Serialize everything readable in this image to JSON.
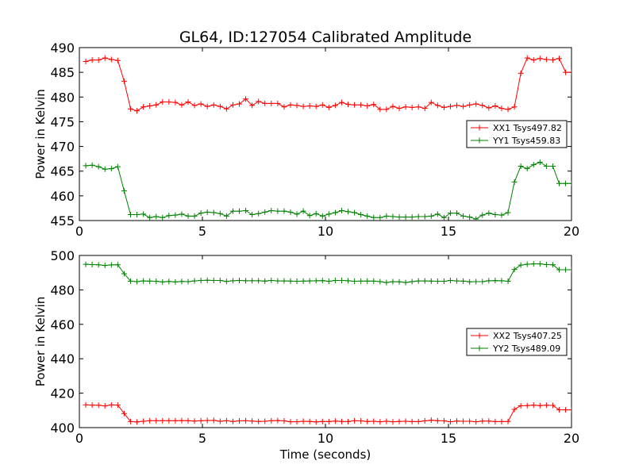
{
  "chart_data": [
    {
      "type": "line",
      "title": "GL64, ID:127054 Calibrated Amplitude",
      "xlabel": "",
      "ylabel": "Power in Kelvin",
      "xlim": [
        0,
        20
      ],
      "ylim": [
        455,
        490
      ],
      "xticks": [
        "0",
        "5",
        "10",
        "15",
        "20"
      ],
      "yticks": [
        "455",
        "460",
        "465",
        "470",
        "475",
        "480",
        "485",
        "490"
      ],
      "grid": false,
      "legend": "center-right",
      "series": [
        {
          "name": "XX1 Tsys497.82",
          "color": "#ff0000",
          "x": [
            0.26,
            0.52,
            0.78,
            1.04,
            1.3,
            1.56,
            1.82,
            2.08,
            2.34,
            2.6,
            2.86,
            3.12,
            3.38,
            3.64,
            3.9,
            4.16,
            4.42,
            4.68,
            4.94,
            5.2,
            5.46,
            5.72,
            5.98,
            6.24,
            6.5,
            6.76,
            7.02,
            7.28,
            7.54,
            7.8,
            8.06,
            8.32,
            8.58,
            8.84,
            9.1,
            9.36,
            9.62,
            9.88,
            10.14,
            10.4,
            10.66,
            10.92,
            11.18,
            11.44,
            11.7,
            11.96,
            12.22,
            12.48,
            12.74,
            13.0,
            13.26,
            13.52,
            13.78,
            14.04,
            14.3,
            14.56,
            14.82,
            15.08,
            15.34,
            15.6,
            15.86,
            16.12,
            16.38,
            16.64,
            16.9,
            17.16,
            17.42,
            17.68,
            17.94,
            18.2,
            18.46,
            18.72,
            18.98,
            19.24,
            19.5,
            19.76,
            20.0
          ],
          "y": [
            487.2,
            487.5,
            487.5,
            487.9,
            487.6,
            487.4,
            483.2,
            477.6,
            477.2,
            478.0,
            478.2,
            478.4,
            479.0,
            479.0,
            478.9,
            478.4,
            479.0,
            478.3,
            478.6,
            478.1,
            478.4,
            478.1,
            477.6,
            478.4,
            478.6,
            479.6,
            478.3,
            479.1,
            478.7,
            478.7,
            478.7,
            478.0,
            478.4,
            478.3,
            478.1,
            478.2,
            478.1,
            478.4,
            477.9,
            478.3,
            478.9,
            478.5,
            478.4,
            478.4,
            478.2,
            478.5,
            477.5,
            477.5,
            478.1,
            477.7,
            478.0,
            477.9,
            478.0,
            477.7,
            478.9,
            478.3,
            477.9,
            478.1,
            478.3,
            478.1,
            478.4,
            478.6,
            478.3,
            477.8,
            478.2,
            477.7,
            477.5,
            478.0,
            484.8,
            487.9,
            487.5,
            487.8,
            487.6,
            487.5,
            487.8,
            485.0,
            485.0
          ]
        },
        {
          "name": "YY1 Tsys459.83",
          "color": "#008000",
          "x": [
            0.26,
            0.52,
            0.78,
            1.04,
            1.3,
            1.56,
            1.82,
            2.08,
            2.34,
            2.6,
            2.86,
            3.12,
            3.38,
            3.64,
            3.9,
            4.16,
            4.42,
            4.68,
            4.94,
            5.2,
            5.46,
            5.72,
            5.98,
            6.24,
            6.5,
            6.76,
            7.02,
            7.28,
            7.54,
            7.8,
            8.06,
            8.32,
            8.58,
            8.84,
            9.1,
            9.36,
            9.62,
            9.88,
            10.14,
            10.4,
            10.66,
            10.92,
            11.18,
            11.44,
            11.7,
            11.96,
            12.22,
            12.48,
            12.74,
            13.0,
            13.26,
            13.52,
            13.78,
            14.04,
            14.3,
            14.56,
            14.82,
            15.08,
            15.34,
            15.6,
            15.86,
            16.12,
            16.38,
            16.64,
            16.9,
            17.16,
            17.42,
            17.68,
            17.94,
            18.2,
            18.46,
            18.72,
            18.98,
            19.24,
            19.5,
            19.76,
            20.0
          ],
          "y": [
            466.1,
            466.2,
            465.9,
            465.4,
            465.5,
            465.9,
            461.0,
            456.2,
            456.2,
            456.3,
            455.6,
            455.8,
            455.6,
            456.0,
            456.1,
            456.3,
            455.9,
            455.9,
            456.5,
            456.7,
            456.6,
            456.4,
            455.9,
            456.9,
            456.9,
            457.0,
            456.2,
            456.4,
            456.7,
            457.0,
            456.9,
            456.9,
            456.7,
            456.3,
            456.9,
            456.0,
            456.4,
            455.9,
            456.3,
            456.6,
            457.0,
            456.8,
            456.6,
            456.2,
            455.9,
            455.6,
            455.6,
            455.9,
            455.8,
            455.7,
            455.7,
            455.7,
            455.8,
            455.8,
            455.9,
            456.3,
            455.6,
            456.5,
            456.5,
            455.9,
            455.7,
            455.3,
            456.1,
            456.5,
            456.2,
            456.1,
            456.6,
            462.8,
            466.0,
            465.5,
            466.3,
            466.8,
            466.0,
            466.0,
            462.5,
            462.5,
            462.5
          ]
        }
      ]
    },
    {
      "type": "line",
      "title": "",
      "xlabel": "Time (seconds)",
      "ylabel": "Power in Kelvin",
      "xlim": [
        0,
        20
      ],
      "ylim": [
        400,
        500
      ],
      "xticks": [
        "0",
        "5",
        "10",
        "15",
        "20"
      ],
      "yticks": [
        "400",
        "420",
        "440",
        "460",
        "480",
        "500"
      ],
      "grid": false,
      "legend": "center-right",
      "series": [
        {
          "name": "XX2 Tsys407.25",
          "color": "#ff0000",
          "x": [
            0.26,
            0.52,
            0.78,
            1.04,
            1.3,
            1.56,
            1.82,
            2.08,
            2.34,
            2.6,
            2.86,
            3.12,
            3.38,
            3.64,
            3.9,
            4.16,
            4.42,
            4.68,
            4.94,
            5.2,
            5.46,
            5.72,
            5.98,
            6.24,
            6.5,
            6.76,
            7.02,
            7.28,
            7.54,
            7.8,
            8.06,
            8.32,
            8.58,
            8.84,
            9.1,
            9.36,
            9.62,
            9.88,
            10.14,
            10.4,
            10.66,
            10.92,
            11.18,
            11.44,
            11.7,
            11.96,
            12.22,
            12.48,
            12.74,
            13.0,
            13.26,
            13.52,
            13.78,
            14.04,
            14.3,
            14.56,
            14.82,
            15.08,
            15.34,
            15.6,
            15.86,
            16.12,
            16.38,
            16.64,
            16.9,
            17.16,
            17.42,
            17.68,
            17.94,
            18.2,
            18.46,
            18.72,
            18.98,
            19.24,
            19.5,
            19.76,
            20.0
          ],
          "y": [
            413.2,
            413.1,
            413.0,
            412.6,
            413.2,
            413.1,
            408.2,
            403.5,
            403.3,
            403.7,
            404.0,
            404.0,
            404.0,
            404.0,
            404.0,
            404.1,
            404.0,
            403.8,
            404.0,
            404.1,
            404.2,
            403.7,
            404.0,
            403.6,
            403.9,
            404.0,
            403.8,
            403.6,
            403.7,
            404.0,
            404.1,
            403.9,
            403.4,
            403.4,
            403.7,
            403.6,
            403.3,
            403.6,
            403.5,
            403.8,
            403.6,
            403.5,
            404.0,
            403.9,
            403.6,
            403.7,
            403.4,
            403.7,
            403.4,
            403.6,
            403.7,
            403.5,
            403.5,
            403.9,
            404.3,
            404.0,
            403.9,
            403.4,
            403.8,
            403.7,
            403.7,
            403.4,
            403.8,
            403.8,
            403.5,
            403.5,
            403.6,
            410.6,
            412.7,
            412.8,
            413.1,
            412.8,
            413.0,
            412.9,
            410.3,
            410.3,
            410.3
          ]
        },
        {
          "name": "YY2 Tsys489.09",
          "color": "#008000",
          "x": [
            0.26,
            0.52,
            0.78,
            1.04,
            1.3,
            1.56,
            1.82,
            2.08,
            2.34,
            2.6,
            2.86,
            3.12,
            3.38,
            3.64,
            3.9,
            4.16,
            4.42,
            4.68,
            4.94,
            5.2,
            5.46,
            5.72,
            5.98,
            6.24,
            6.5,
            6.76,
            7.02,
            7.28,
            7.54,
            7.8,
            8.06,
            8.32,
            8.58,
            8.84,
            9.1,
            9.36,
            9.62,
            9.88,
            10.14,
            10.4,
            10.66,
            10.92,
            11.18,
            11.44,
            11.7,
            11.96,
            12.22,
            12.48,
            12.74,
            13.0,
            13.26,
            13.52,
            13.78,
            14.04,
            14.3,
            14.56,
            14.82,
            15.08,
            15.34,
            15.6,
            15.86,
            16.12,
            16.38,
            16.64,
            16.9,
            17.16,
            17.42,
            17.68,
            17.94,
            18.2,
            18.46,
            18.72,
            18.98,
            19.24,
            19.5,
            19.76,
            20.0
          ],
          "y": [
            494.9,
            494.7,
            494.6,
            494.2,
            494.5,
            494.6,
            489.4,
            485.1,
            484.8,
            485.2,
            485.1,
            485.0,
            484.6,
            484.9,
            484.6,
            484.9,
            484.8,
            485.2,
            485.5,
            485.6,
            485.5,
            485.5,
            484.9,
            485.3,
            485.5,
            485.3,
            485.3,
            485.3,
            485.1,
            485.5,
            485.2,
            485.2,
            485.1,
            485.0,
            485.1,
            485.2,
            485.3,
            485.4,
            485.0,
            485.5,
            485.5,
            485.3,
            485.0,
            485.1,
            485.1,
            485.1,
            484.8,
            484.3,
            484.8,
            484.7,
            484.3,
            484.8,
            485.2,
            485.2,
            485.1,
            485.0,
            485.0,
            485.5,
            485.2,
            485.1,
            484.7,
            484.8,
            484.8,
            485.3,
            485.4,
            485.3,
            485.0,
            491.9,
            494.4,
            494.9,
            495.1,
            495.1,
            494.7,
            494.6,
            491.7,
            491.7,
            491.7
          ]
        }
      ]
    }
  ]
}
